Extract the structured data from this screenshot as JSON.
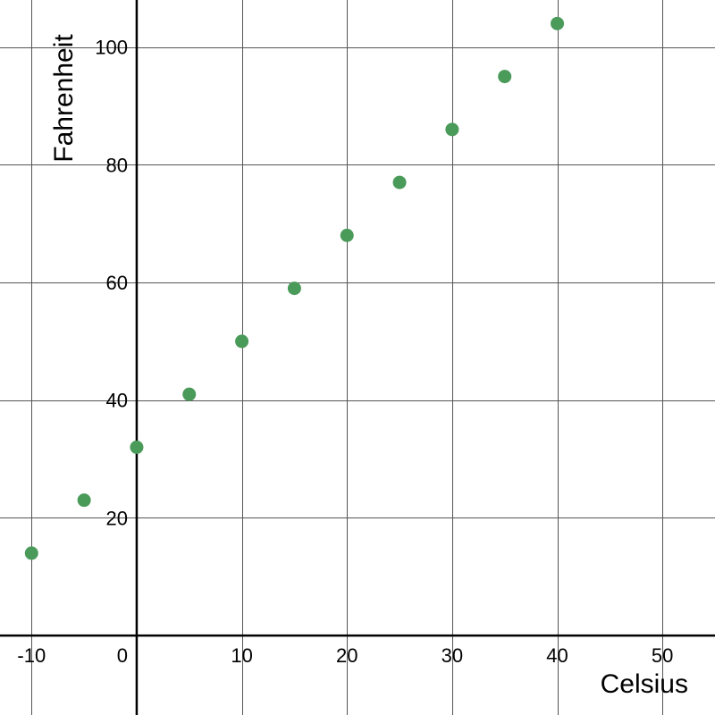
{
  "chart_data": {
    "type": "scatter",
    "xlabel": "Celsius",
    "ylabel": "Fahrenheit",
    "xlim": [
      -13,
      55
    ],
    "ylim": [
      -13.5,
      108
    ],
    "x_ticks": [
      -10,
      0,
      10,
      20,
      30,
      40,
      50
    ],
    "y_ticks": [
      20,
      40,
      60,
      80,
      100
    ],
    "x_tick_labels": [
      "-10",
      "0",
      "10",
      "20",
      "30",
      "40",
      "50"
    ],
    "y_tick_labels": [
      "20",
      "40",
      "60",
      "80",
      "100"
    ],
    "grid": true,
    "series": [
      {
        "color": "#4a9a5a",
        "points": [
          {
            "x": -10,
            "y": 14
          },
          {
            "x": -5,
            "y": 23
          },
          {
            "x": 0,
            "y": 32
          },
          {
            "x": 5,
            "y": 41
          },
          {
            "x": 10,
            "y": 50
          },
          {
            "x": 15,
            "y": 59
          },
          {
            "x": 20,
            "y": 68
          },
          {
            "x": 25,
            "y": 77
          },
          {
            "x": 30,
            "y": 86
          },
          {
            "x": 35,
            "y": 95
          },
          {
            "x": 40,
            "y": 104
          }
        ]
      }
    ]
  }
}
